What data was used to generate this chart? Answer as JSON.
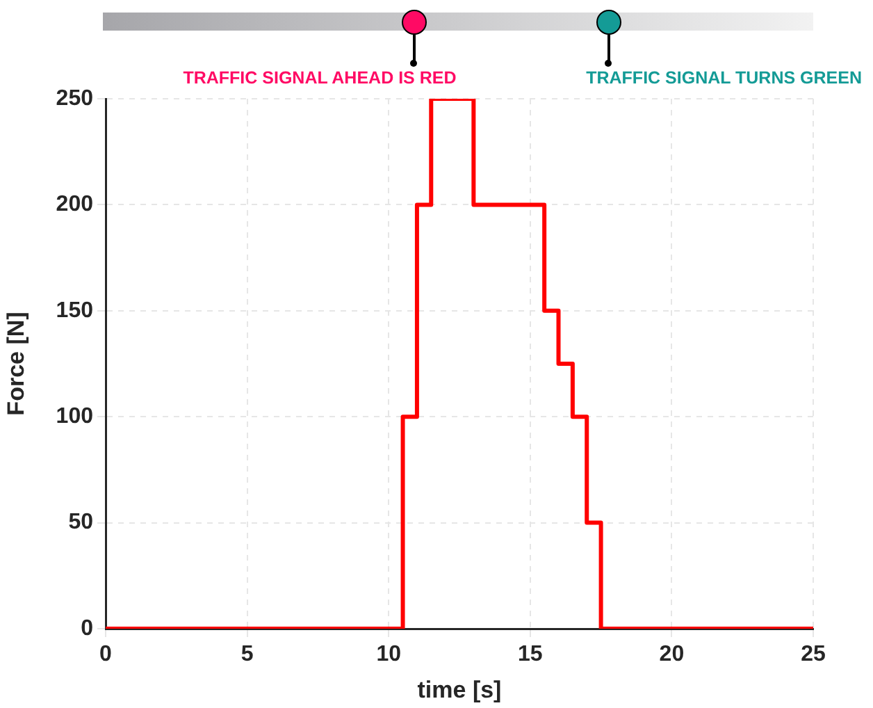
{
  "chart_data": {
    "type": "step",
    "xlabel": "time [s]",
    "ylabel": "Force [N]",
    "series": [
      {
        "color": "#ff0000",
        "x": [
          0,
          10.5,
          11,
          11.5,
          13,
          15.5,
          16,
          16.5,
          17,
          17.5,
          25
        ],
        "values": [
          0,
          100,
          200,
          250,
          200,
          150,
          125,
          100,
          50,
          0,
          0
        ]
      }
    ],
    "xlim": [
      0,
      25
    ],
    "xticks": [
      0,
      5,
      10,
      15,
      20,
      25
    ],
    "ylim": [
      0,
      250
    ],
    "yticks": [
      0,
      50,
      100,
      150,
      200,
      250
    ],
    "grid": true,
    "annotations": [
      "TRAFFIC SIGNAL AHEAD IS RED",
      "TRAFFIC SIGNAL TURNS GREEN"
    ]
  }
}
